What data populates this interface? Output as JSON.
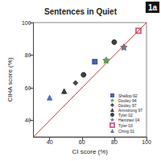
{
  "chart_data": {
    "type": "scatter",
    "title": "Sentences in Quiet",
    "annotation": "1a",
    "x_label": "CI score (%)",
    "y_label": "CIHA score (%)",
    "xlim": [
      30,
      100
    ],
    "xticks": [
      40,
      60,
      80,
      100
    ],
    "ylim": [
      30,
      100
    ],
    "yticks": [
      40,
      60,
      80,
      100
    ],
    "grid": false,
    "legend": "lower right",
    "series": [
      {
        "name": "Shallop 92",
        "color": "#1f3a93",
        "marker": "square",
        "x": [
          68
        ],
        "y": [
          76
        ]
      },
      {
        "name": "Dooley 94",
        "color": "#3a8a3a",
        "marker": "star",
        "x": [
          75
        ],
        "y": [
          77
        ]
      },
      {
        "name": "Dooley 97",
        "color": "#222222",
        "marker": "diamond",
        "x": [
          56
        ],
        "y": [
          63
        ]
      },
      {
        "name": "Armstrong 97",
        "color": "#111111",
        "marker": "triangle",
        "x": [
          49
        ],
        "y": [
          58
        ]
      },
      {
        "name": "Tyler 02",
        "color": "#111111",
        "marker": "circle",
        "x": [
          61,
          80
        ],
        "y": [
          68,
          88
        ]
      },
      {
        "name": "Hamzavi 04",
        "color": "#555577",
        "marker": "star",
        "x": [
          86
        ],
        "y": [
          85
        ]
      },
      {
        "name": "Tyler 03",
        "color": "#d0407a",
        "marker": "open_square",
        "x": [
          95
        ],
        "y": [
          95
        ]
      },
      {
        "name": "Ching 01",
        "color": "#3050c0",
        "marker": "triangle",
        "x": [
          40
        ],
        "y": [
          54
        ]
      }
    ]
  }
}
